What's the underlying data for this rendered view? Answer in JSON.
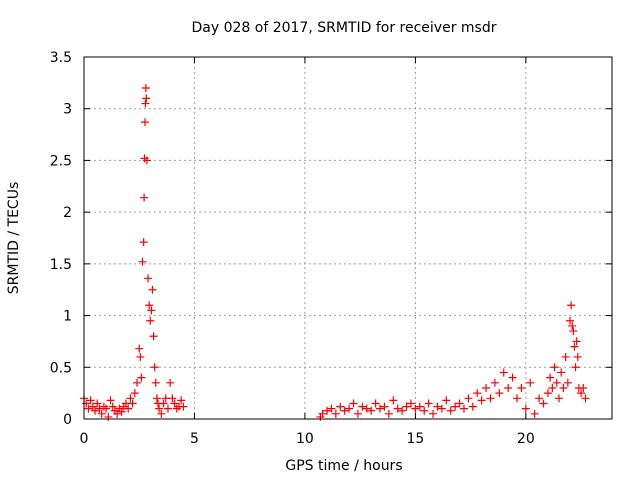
{
  "chart_data": {
    "type": "scatter",
    "title": "Day 028 of 2017, SRMTID for receiver msdr",
    "xlabel": "GPS time / hours",
    "ylabel": "SRMTID / TECUs",
    "xlim": [
      0,
      23.9
    ],
    "ylim": [
      0,
      3.5
    ],
    "xticks": [
      0,
      5,
      10,
      15,
      20
    ],
    "xtick_labels": [
      "0",
      "5",
      "10",
      "15",
      "20"
    ],
    "yticks": [
      0,
      0.5,
      1,
      1.5,
      2,
      2.5,
      3,
      3.5
    ],
    "ytick_labels": [
      "0",
      "0.5",
      "1",
      "1.5",
      "2",
      "2.5",
      "3",
      "3.5"
    ],
    "grid": true,
    "marker": "plus",
    "color": "#ff0000",
    "series": [
      {
        "name": "SRMTID",
        "x": [
          0.0,
          0.1,
          0.2,
          0.3,
          0.4,
          0.5,
          0.6,
          0.7,
          0.8,
          0.9,
          1.0,
          1.1,
          1.2,
          1.3,
          1.4,
          1.5,
          1.6,
          1.7,
          1.8,
          1.9,
          2.0,
          2.1,
          2.2,
          2.3,
          2.4,
          2.5,
          2.55,
          2.6,
          2.65,
          2.7,
          2.72,
          2.74,
          2.76,
          2.78,
          2.8,
          2.82,
          2.85,
          2.9,
          2.95,
          3.0,
          3.05,
          3.1,
          3.15,
          3.2,
          3.25,
          3.3,
          3.35,
          3.4,
          3.5,
          3.6,
          3.7,
          3.8,
          3.9,
          4.0,
          4.1,
          4.2,
          4.3,
          4.4,
          4.5,
          10.7,
          10.8,
          11.0,
          11.2,
          11.4,
          11.6,
          11.8,
          12.0,
          12.2,
          12.4,
          12.6,
          12.8,
          13.0,
          13.2,
          13.4,
          13.6,
          13.8,
          14.0,
          14.2,
          14.4,
          14.6,
          14.8,
          15.0,
          15.2,
          15.4,
          15.6,
          15.8,
          16.0,
          16.2,
          16.4,
          16.6,
          16.8,
          17.0,
          17.2,
          17.4,
          17.6,
          17.8,
          18.0,
          18.2,
          18.4,
          18.6,
          18.8,
          19.0,
          19.2,
          19.4,
          19.6,
          19.8,
          20.0,
          20.2,
          20.4,
          20.6,
          20.8,
          21.0,
          21.1,
          21.2,
          21.3,
          21.4,
          21.5,
          21.6,
          21.7,
          21.8,
          21.9,
          22.0,
          22.05,
          22.1,
          22.15,
          22.2,
          22.25,
          22.3,
          22.35,
          22.4,
          22.5,
          22.6,
          22.7
        ],
        "y": [
          0.2,
          0.15,
          0.1,
          0.18,
          0.12,
          0.08,
          0.15,
          0.1,
          0.05,
          0.12,
          0.1,
          0.02,
          0.18,
          0.12,
          0.08,
          0.05,
          0.1,
          0.07,
          0.12,
          0.15,
          0.1,
          0.2,
          0.15,
          0.25,
          0.35,
          0.68,
          0.6,
          0.4,
          1.52,
          1.71,
          2.14,
          2.52,
          2.87,
          3.05,
          3.2,
          3.1,
          2.5,
          1.36,
          1.1,
          0.95,
          1.05,
          1.25,
          0.8,
          0.5,
          0.35,
          0.2,
          0.15,
          0.1,
          0.05,
          0.15,
          0.2,
          0.1,
          0.35,
          0.2,
          0.15,
          0.1,
          0.12,
          0.18,
          0.12,
          0.02,
          0.05,
          0.08,
          0.1,
          0.05,
          0.12,
          0.08,
          0.1,
          0.15,
          0.05,
          0.12,
          0.1,
          0.08,
          0.15,
          0.1,
          0.12,
          0.05,
          0.18,
          0.1,
          0.08,
          0.12,
          0.15,
          0.1,
          0.12,
          0.08,
          0.15,
          0.05,
          0.12,
          0.1,
          0.18,
          0.08,
          0.12,
          0.15,
          0.1,
          0.2,
          0.12,
          0.25,
          0.18,
          0.3,
          0.2,
          0.35,
          0.25,
          0.45,
          0.3,
          0.4,
          0.2,
          0.3,
          0.1,
          0.35,
          0.05,
          0.2,
          0.15,
          0.25,
          0.4,
          0.3,
          0.5,
          0.35,
          0.2,
          0.45,
          0.3,
          0.6,
          0.35,
          0.95,
          1.1,
          0.9,
          0.85,
          0.7,
          0.5,
          0.75,
          0.6,
          0.3,
          0.25,
          0.3,
          0.2
        ]
      }
    ]
  }
}
